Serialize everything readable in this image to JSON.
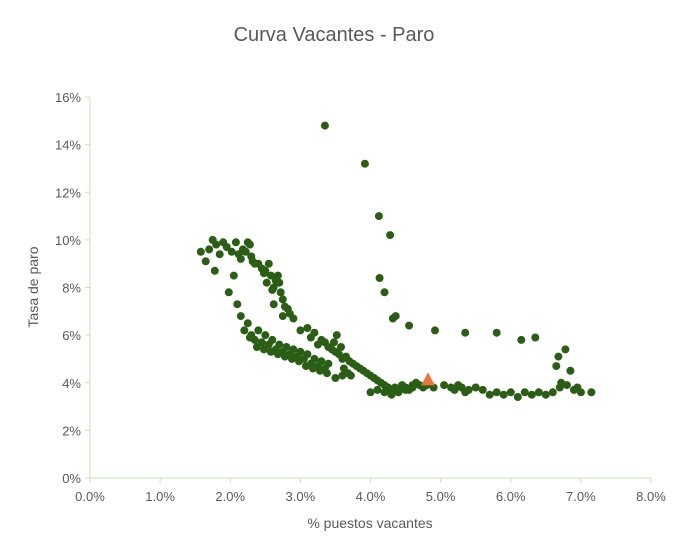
{
  "chart_data": {
    "type": "scatter",
    "title": "Curva Vacantes - Paro",
    "xlabel": "% puestos vacantes",
    "ylabel": "Tasa de paro",
    "xlim": [
      0,
      0.08
    ],
    "ylim": [
      0,
      0.16
    ],
    "x_ticks": [
      "0.0%",
      "1.0%",
      "2.0%",
      "3.0%",
      "4.0%",
      "5.0%",
      "6.0%",
      "7.0%",
      "8.0%"
    ],
    "y_ticks": [
      "0%",
      "2%",
      "4%",
      "6%",
      "8%",
      "10%",
      "12%",
      "14%",
      "16%"
    ],
    "grid": false,
    "colors": {
      "series": "#2a5e14",
      "highlight": "#e8763a",
      "axis": "#c8e0b8",
      "text": "#595959"
    },
    "series": [
      {
        "values": [
          [
            0.0158,
            0.095
          ],
          [
            0.0165,
            0.091
          ],
          [
            0.017,
            0.096
          ],
          [
            0.0175,
            0.1
          ],
          [
            0.018,
            0.098
          ],
          [
            0.0178,
            0.087
          ],
          [
            0.0185,
            0.094
          ],
          [
            0.019,
            0.099
          ],
          [
            0.0195,
            0.097
          ],
          [
            0.0198,
            0.078
          ],
          [
            0.0202,
            0.095
          ],
          [
            0.0205,
            0.085
          ],
          [
            0.0208,
            0.099
          ],
          [
            0.0212,
            0.094
          ],
          [
            0.0215,
            0.092
          ],
          [
            0.0218,
            0.096
          ],
          [
            0.0222,
            0.095
          ],
          [
            0.0225,
            0.099
          ],
          [
            0.0228,
            0.098
          ],
          [
            0.023,
            0.093
          ],
          [
            0.0232,
            0.091
          ],
          [
            0.0235,
            0.09
          ],
          [
            0.024,
            0.09
          ],
          [
            0.0245,
            0.088
          ],
          [
            0.0248,
            0.086
          ],
          [
            0.025,
            0.087
          ],
          [
            0.0252,
            0.082
          ],
          [
            0.0255,
            0.09
          ],
          [
            0.0258,
            0.085
          ],
          [
            0.026,
            0.079
          ],
          [
            0.0262,
            0.08
          ],
          [
            0.0265,
            0.083
          ],
          [
            0.0268,
            0.085
          ],
          [
            0.027,
            0.082
          ],
          [
            0.0272,
            0.078
          ],
          [
            0.0275,
            0.075
          ],
          [
            0.0278,
            0.072
          ],
          [
            0.0262,
            0.073
          ],
          [
            0.0282,
            0.071
          ],
          [
            0.0285,
            0.069
          ],
          [
            0.029,
            0.067
          ],
          [
            0.0275,
            0.068
          ],
          [
            0.021,
            0.073
          ],
          [
            0.0215,
            0.068
          ],
          [
            0.022,
            0.062
          ],
          [
            0.0225,
            0.065
          ],
          [
            0.023,
            0.06
          ],
          [
            0.0235,
            0.058
          ],
          [
            0.024,
            0.062
          ],
          [
            0.0245,
            0.057
          ],
          [
            0.025,
            0.06
          ],
          [
            0.0255,
            0.056
          ],
          [
            0.026,
            0.058
          ],
          [
            0.0265,
            0.054
          ],
          [
            0.027,
            0.056
          ],
          [
            0.0275,
            0.053
          ],
          [
            0.028,
            0.055
          ],
          [
            0.0285,
            0.052
          ],
          [
            0.029,
            0.054
          ],
          [
            0.0295,
            0.051
          ],
          [
            0.03,
            0.053
          ],
          [
            0.0305,
            0.05
          ],
          [
            0.031,
            0.052
          ],
          [
            0.0315,
            0.048
          ],
          [
            0.032,
            0.05
          ],
          [
            0.0325,
            0.047
          ],
          [
            0.033,
            0.049
          ],
          [
            0.0335,
            0.046
          ],
          [
            0.034,
            0.048
          ],
          [
            0.0228,
            0.059
          ],
          [
            0.0238,
            0.055
          ],
          [
            0.0248,
            0.054
          ],
          [
            0.0258,
            0.053
          ],
          [
            0.0268,
            0.052
          ],
          [
            0.0278,
            0.051
          ],
          [
            0.0288,
            0.05
          ],
          [
            0.0298,
            0.049
          ],
          [
            0.0308,
            0.047
          ],
          [
            0.0318,
            0.046
          ],
          [
            0.0328,
            0.045
          ],
          [
            0.0338,
            0.044
          ],
          [
            0.03,
            0.062
          ],
          [
            0.031,
            0.063
          ],
          [
            0.0315,
            0.059
          ],
          [
            0.032,
            0.061
          ],
          [
            0.0325,
            0.056
          ],
          [
            0.033,
            0.058
          ],
          [
            0.0335,
            0.057
          ],
          [
            0.034,
            0.055
          ],
          [
            0.0345,
            0.054
          ],
          [
            0.035,
            0.053
          ],
          [
            0.0355,
            0.052
          ],
          [
            0.036,
            0.05
          ],
          [
            0.0365,
            0.051
          ],
          [
            0.037,
            0.049
          ],
          [
            0.0375,
            0.048
          ],
          [
            0.038,
            0.047
          ],
          [
            0.0385,
            0.046
          ],
          [
            0.039,
            0.045
          ],
          [
            0.0395,
            0.044
          ],
          [
            0.04,
            0.043
          ],
          [
            0.0405,
            0.042
          ],
          [
            0.041,
            0.041
          ],
          [
            0.0348,
            0.057
          ],
          [
            0.0352,
            0.06
          ],
          [
            0.0358,
            0.055
          ],
          [
            0.0362,
            0.046
          ],
          [
            0.0368,
            0.044
          ],
          [
            0.0372,
            0.043
          ],
          [
            0.035,
            0.042
          ],
          [
            0.036,
            0.043
          ],
          [
            0.0415,
            0.04
          ],
          [
            0.042,
            0.039
          ],
          [
            0.0425,
            0.038
          ],
          [
            0.043,
            0.037
          ],
          [
            0.0435,
            0.038
          ],
          [
            0.044,
            0.037
          ],
          [
            0.0445,
            0.039
          ],
          [
            0.045,
            0.038
          ],
          [
            0.0455,
            0.037
          ],
          [
            0.046,
            0.039
          ],
          [
            0.0465,
            0.04
          ],
          [
            0.047,
            0.039
          ],
          [
            0.0475,
            0.038
          ],
          [
            0.048,
            0.039
          ],
          [
            0.049,
            0.038
          ],
          [
            0.041,
            0.037
          ],
          [
            0.04,
            0.036
          ],
          [
            0.042,
            0.036
          ],
          [
            0.043,
            0.035
          ],
          [
            0.044,
            0.036
          ],
          [
            0.045,
            0.037
          ],
          [
            0.046,
            0.038
          ],
          [
            0.0505,
            0.039
          ],
          [
            0.0515,
            0.038
          ],
          [
            0.052,
            0.037
          ],
          [
            0.0525,
            0.039
          ],
          [
            0.053,
            0.038
          ],
          [
            0.0535,
            0.036
          ],
          [
            0.054,
            0.037
          ],
          [
            0.055,
            0.038
          ],
          [
            0.056,
            0.037
          ],
          [
            0.057,
            0.035
          ],
          [
            0.058,
            0.036
          ],
          [
            0.059,
            0.035
          ],
          [
            0.06,
            0.036
          ],
          [
            0.061,
            0.034
          ],
          [
            0.062,
            0.036
          ],
          [
            0.063,
            0.035
          ],
          [
            0.064,
            0.036
          ],
          [
            0.065,
            0.035
          ],
          [
            0.066,
            0.036
          ],
          [
            0.067,
            0.038
          ],
          [
            0.068,
            0.039
          ],
          [
            0.069,
            0.037
          ],
          [
            0.07,
            0.036
          ],
          [
            0.0715,
            0.036
          ],
          [
            0.0665,
            0.047
          ],
          [
            0.0668,
            0.051
          ],
          [
            0.0672,
            0.04
          ],
          [
            0.0678,
            0.054
          ],
          [
            0.0685,
            0.045
          ],
          [
            0.0695,
            0.038
          ],
          [
            0.0335,
            0.148
          ],
          [
            0.0392,
            0.132
          ],
          [
            0.0412,
            0.11
          ],
          [
            0.0428,
            0.102
          ],
          [
            0.0413,
            0.084
          ],
          [
            0.042,
            0.078
          ],
          [
            0.0432,
            0.067
          ],
          [
            0.0436,
            0.068
          ],
          [
            0.0455,
            0.064
          ],
          [
            0.0492,
            0.062
          ],
          [
            0.0535,
            0.061
          ],
          [
            0.058,
            0.061
          ],
          [
            0.0615,
            0.058
          ],
          [
            0.0635,
            0.059
          ]
        ]
      }
    ],
    "highlight_point": [
      0.0482,
      0.041
    ]
  }
}
